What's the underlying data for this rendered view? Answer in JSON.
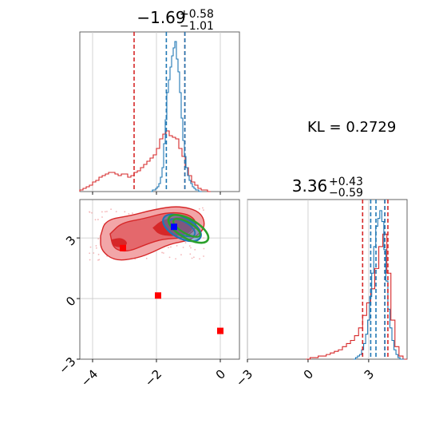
{
  "kl_text": "KL = 0.2729",
  "colors": {
    "red": "#d62728",
    "blue": "#1f77b4",
    "green": "#2ca02c",
    "marker_blue": "#0000ff",
    "marker_red": "#ff0000",
    "grid": "#c8c8c8",
    "fill_outer": "#f2a6a8",
    "fill_mid": "#e4686c",
    "fill_inner": "#d62728"
  },
  "chart_data": [
    {
      "type": "histogram",
      "panel": "marginal-x",
      "title": {
        "median": "−1.69",
        "plus": "+0.58",
        "minus": "−1.01"
      },
      "xlim": [
        -4.4,
        0.6
      ],
      "grid": true,
      "lines": {
        "red": [
          -2.7,
          -1.11
        ],
        "blue": [
          -1.69,
          -1.11
        ]
      },
      "series": [
        {
          "color": "red",
          "bin_centers": [
            -4.35,
            -4.25,
            -4.15,
            -4.05,
            -3.95,
            -3.85,
            -3.75,
            -3.65,
            -3.55,
            -3.45,
            -3.35,
            -3.25,
            -3.15,
            -3.05,
            -2.95,
            -2.85,
            -2.75,
            -2.65,
            -2.55,
            -2.45,
            -2.35,
            -2.25,
            -2.15,
            -2.05,
            -1.95,
            -1.85,
            -1.75,
            -1.65,
            -1.55,
            -1.45,
            -1.35,
            -1.25,
            -1.15,
            -1.05,
            -0.95,
            -0.85,
            -0.75,
            -0.65,
            -0.55,
            -0.45,
            -0.35
          ],
          "values": [
            0.01,
            0.02,
            0.03,
            0.04,
            0.06,
            0.07,
            0.09,
            0.1,
            0.11,
            0.12,
            0.12,
            0.11,
            0.1,
            0.11,
            0.11,
            0.09,
            0.1,
            0.12,
            0.13,
            0.15,
            0.17,
            0.19,
            0.21,
            0.23,
            0.27,
            0.33,
            0.36,
            0.38,
            0.35,
            0.34,
            0.33,
            0.27,
            0.22,
            0.15,
            0.1,
            0.06,
            0.04,
            0.02,
            0.01,
            0.01,
            0.0
          ]
        },
        {
          "color": "blue",
          "bin_centers": [
            -2.15,
            -2.1,
            -2.05,
            -2.0,
            -1.95,
            -1.9,
            -1.85,
            -1.8,
            -1.75,
            -1.7,
            -1.65,
            -1.6,
            -1.55,
            -1.5,
            -1.45,
            -1.4,
            -1.35,
            -1.3,
            -1.25,
            -1.2,
            -1.15,
            -1.1,
            -1.05,
            -1.0,
            -0.95,
            -0.9,
            -0.85,
            -0.8,
            -0.75,
            -0.7,
            -0.65,
            -0.6
          ],
          "values": [
            0.0,
            0.01,
            0.01,
            0.02,
            0.03,
            0.05,
            0.09,
            0.15,
            0.3,
            0.45,
            0.62,
            0.7,
            0.78,
            0.85,
            0.9,
            0.94,
            0.83,
            0.75,
            0.62,
            0.46,
            0.32,
            0.22,
            0.15,
            0.1,
            0.07,
            0.05,
            0.03,
            0.02,
            0.01,
            0.01,
            0.0,
            0.0
          ]
        }
      ]
    },
    {
      "type": "scatter",
      "panel": "joint",
      "xlim": [
        -4.4,
        0.6
      ],
      "ylim": [
        -3,
        4.9
      ],
      "xticks": [
        "−4",
        "−2",
        "0"
      ],
      "xtick_values": [
        -4,
        -2,
        0
      ],
      "yticks": [
        "−3",
        "0",
        "3"
      ],
      "ytick_values": [
        -3,
        0,
        3
      ],
      "grid": true,
      "points": [
        {
          "color": "marker_red",
          "x": -3.05,
          "y": 2.5
        },
        {
          "color": "marker_red",
          "x": -1.95,
          "y": 0.15
        },
        {
          "color": "marker_red",
          "x": 0.0,
          "y": -1.6
        },
        {
          "color": "marker_blue",
          "x": -1.45,
          "y": 3.55
        }
      ]
    },
    {
      "type": "histogram",
      "panel": "marginal-y",
      "title": {
        "median": "3.36",
        "plus": "+0.43",
        "minus": "−0.59"
      },
      "xlim": [
        -3,
        4.9
      ],
      "xticks": [
        "−3",
        "0",
        "3"
      ],
      "xtick_values": [
        -3,
        0,
        3
      ],
      "grid": true,
      "lines": {
        "red": [
          2.7,
          3.8,
          3.95
        ],
        "blue": [
          3.1,
          3.36,
          3.8
        ]
      },
      "series": [
        {
          "color": "red",
          "bin_centers": [
            0.0,
            0.2,
            0.4,
            0.6,
            0.8,
            1.0,
            1.2,
            1.4,
            1.6,
            1.8,
            2.0,
            2.2,
            2.4,
            2.6,
            2.8,
            3.0,
            3.2,
            3.4,
            3.6,
            3.8,
            4.0,
            4.2,
            4.4,
            4.6,
            4.8
          ],
          "values": [
            0.0,
            0.01,
            0.01,
            0.02,
            0.02,
            0.03,
            0.04,
            0.05,
            0.06,
            0.08,
            0.1,
            0.12,
            0.15,
            0.2,
            0.28,
            0.36,
            0.45,
            0.58,
            0.72,
            0.8,
            0.55,
            0.25,
            0.08,
            0.02,
            0.0
          ]
        },
        {
          "color": "blue",
          "bin_centers": [
            2.3,
            2.4,
            2.5,
            2.6,
            2.7,
            2.8,
            2.9,
            3.0,
            3.1,
            3.2,
            3.3,
            3.4,
            3.5,
            3.6,
            3.7,
            3.8,
            3.9,
            4.0,
            4.1,
            4.2,
            4.3,
            4.4,
            4.5,
            4.6,
            4.7
          ],
          "values": [
            0.0,
            0.01,
            0.02,
            0.03,
            0.06,
            0.1,
            0.16,
            0.25,
            0.4,
            0.55,
            0.72,
            0.85,
            0.9,
            0.95,
            0.88,
            0.7,
            0.5,
            0.32,
            0.2,
            0.12,
            0.06,
            0.03,
            0.01,
            0.0,
            0.0
          ]
        }
      ]
    }
  ]
}
